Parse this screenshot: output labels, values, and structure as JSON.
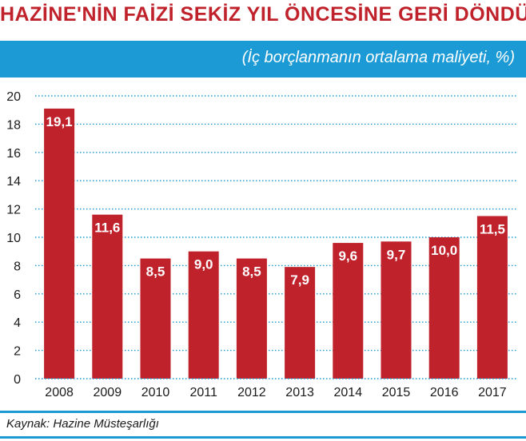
{
  "title": "HAZİNE'NİN FAİZİ SEKİZ YIL ÖNCESİNE GERİ DÖNDÜ",
  "subtitle": "(İç borçlanmanın ortalama maliyeti, %)",
  "source": "Kaynak: Hazine Müsteşarlığı",
  "colors": {
    "bar": "#c0222b",
    "accent": "#1b9ad6",
    "grid": "#1b9ad6",
    "text": "#1a1a1a"
  },
  "chart_data": {
    "type": "bar",
    "title": "HAZİNE'NİN FAİZİ SEKİZ YIL ÖNCESİNE GERİ DÖNDÜ",
    "subtitle": "(İç borçlanmanın ortalama maliyeti, %)",
    "categories": [
      "2008",
      "2009",
      "2010",
      "2011",
      "2012",
      "2013",
      "2014",
      "2015",
      "2016",
      "2017"
    ],
    "values": [
      19.1,
      11.6,
      8.5,
      9.0,
      8.5,
      7.9,
      9.6,
      9.7,
      10.0,
      11.5
    ],
    "value_labels": [
      "19,1",
      "11,6",
      "8,5",
      "9,0",
      "8,5",
      "7,9",
      "9,6",
      "9,7",
      "10,0",
      "11,5"
    ],
    "yticks": [
      "0",
      "2",
      "4",
      "6",
      "8",
      "10",
      "12",
      "14",
      "16",
      "18",
      "20"
    ],
    "ylim": [
      0,
      20
    ],
    "xlabel": "",
    "ylabel": "",
    "grid": true,
    "grid_style": "dotted"
  }
}
